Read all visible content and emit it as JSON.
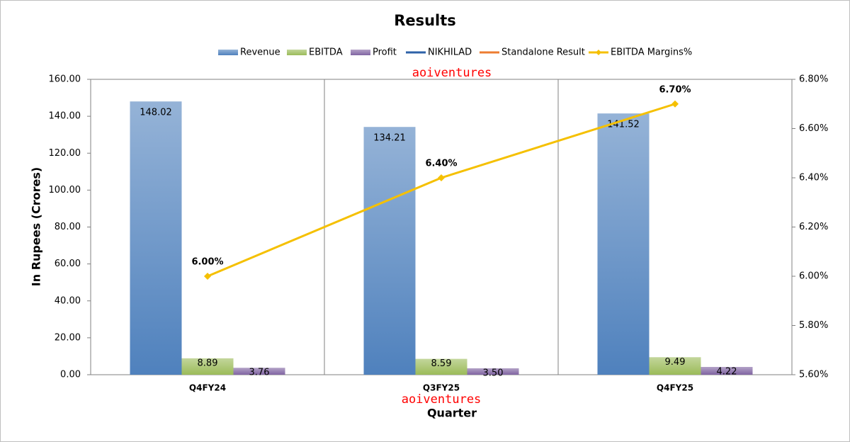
{
  "chart_data": {
    "type": "bar",
    "title": "Results",
    "categories": [
      "Q4FY24",
      "Q3FY25",
      "Q4FY25"
    ],
    "series": [
      {
        "name": "Revenue",
        "color": "#4f81bd",
        "values": [
          148.02,
          134.21,
          141.52
        ],
        "value_labels": [
          "148.02",
          "134.21",
          "141.52"
        ]
      },
      {
        "name": "EBITDA",
        "color": "#9bbb59",
        "values": [
          8.89,
          8.59,
          9.49
        ],
        "value_labels": [
          "8.89",
          "8.59",
          "9.49"
        ]
      },
      {
        "name": "Profit",
        "color": "#8064a2",
        "values": [
          3.76,
          3.5,
          4.22
        ],
        "value_labels": [
          "3.76",
          "3.50",
          "4.22"
        ]
      },
      {
        "name": "NIKHILAD",
        "color": "#2e62a8",
        "type": "line",
        "values": [
          null,
          null,
          null
        ]
      },
      {
        "name": "Standalone Result",
        "color": "#ed7d31",
        "type": "line",
        "values": [
          null,
          null,
          null
        ]
      },
      {
        "name": "EBITDA Margins%",
        "color": "#f5c000",
        "type": "line",
        "axis": "y2",
        "values": [
          6.0,
          6.4,
          6.7
        ],
        "value_labels": [
          "6.00%",
          "6.40%",
          "6.70%"
        ]
      }
    ],
    "x_label": "Quarter",
    "y_label": "In Rupees (Crores)",
    "annotations": [
      "aoiventures",
      "aoiventures"
    ],
    "ylim": [
      0,
      160
    ],
    "yticks": [
      {
        "value": 0,
        "label": "0.00"
      },
      {
        "value": 20,
        "label": "20.00"
      },
      {
        "value": 40,
        "label": "40.00"
      },
      {
        "value": 60,
        "label": "60.00"
      },
      {
        "value": 80,
        "label": "80.00"
      },
      {
        "value": 100,
        "label": "100.00"
      },
      {
        "value": 120,
        "label": "120.00"
      },
      {
        "value": 140,
        "label": "140.00"
      },
      {
        "value": 160,
        "label": "160.00"
      }
    ],
    "y2lim": [
      5.6,
      6.8
    ],
    "y2ticks": [
      {
        "value": 5.6,
        "label": "5.60%"
      },
      {
        "value": 5.8,
        "label": "5.80%"
      },
      {
        "value": 6.0,
        "label": "6.00%"
      },
      {
        "value": 6.2,
        "label": "6.20%"
      },
      {
        "value": 6.4,
        "label": "6.40%"
      },
      {
        "value": 6.6,
        "label": "6.60%"
      },
      {
        "value": 6.8,
        "label": "6.80%"
      }
    ],
    "legend": "top"
  }
}
